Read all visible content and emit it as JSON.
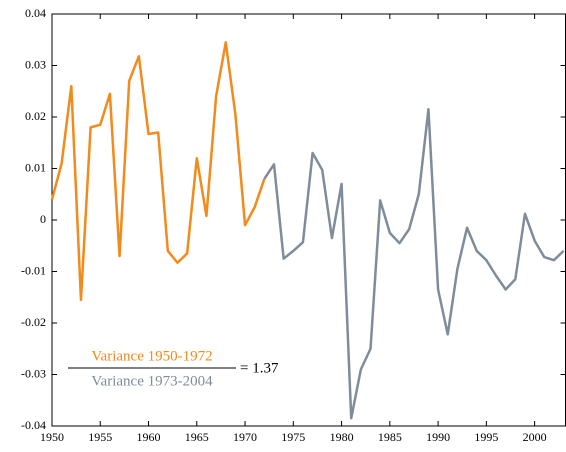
{
  "chart_data": {
    "type": "line",
    "x": [
      1950,
      1951,
      1952,
      1953,
      1954,
      1955,
      1956,
      1957,
      1958,
      1959,
      1960,
      1961,
      1962,
      1963,
      1964,
      1965,
      1966,
      1967,
      1968,
      1969,
      1970,
      1971,
      1972,
      1973,
      1974,
      1975,
      1976,
      1977,
      1978,
      1979,
      1980,
      1981,
      1982,
      1983,
      1984,
      1985,
      1986,
      1987,
      1988,
      1989,
      1990,
      1991,
      1992,
      1993,
      1994,
      1995,
      1996,
      1997,
      1998,
      1999,
      2000,
      2001,
      2002,
      2003
    ],
    "series": [
      {
        "name": "Variance 1950-1972",
        "color": "#f28a1c",
        "values": [
          0.004,
          0.011,
          0.026,
          -0.0155,
          0.018,
          0.0185,
          0.0245,
          -0.007,
          0.027,
          0.0318,
          0.0167,
          0.017,
          -0.006,
          -0.0083,
          -0.0065,
          0.012,
          0.0008,
          0.024,
          0.0345,
          0.0205,
          -0.001,
          0.0025,
          0.008,
          null,
          null,
          null,
          null,
          null,
          null,
          null,
          null,
          null,
          null,
          null,
          null,
          null,
          null,
          null,
          null,
          null,
          null,
          null,
          null,
          null,
          null,
          null,
          null,
          null,
          null,
          null,
          null,
          null,
          null,
          null
        ]
      },
      {
        "name": "Variance 1973-2004",
        "color": "#7f8c9a",
        "values": [
          null,
          null,
          null,
          null,
          null,
          null,
          null,
          null,
          null,
          null,
          null,
          null,
          null,
          null,
          null,
          null,
          null,
          null,
          null,
          null,
          null,
          null,
          0.008,
          0.0108,
          -0.0075,
          -0.006,
          -0.0043,
          0.013,
          0.0097,
          -0.0035,
          0.007,
          -0.0385,
          -0.029,
          -0.025,
          0.0038,
          -0.0025,
          -0.0045,
          -0.0018,
          0.005,
          0.0215,
          -0.0135,
          -0.0222,
          -0.0095,
          -0.0015,
          -0.006,
          -0.0078,
          -0.0108,
          -0.0135,
          -0.0115,
          0.0012,
          -0.004,
          -0.0072,
          -0.0078,
          -0.006
        ]
      }
    ],
    "annotation": {
      "result": "= 1.37"
    },
    "xlim": [
      1950,
      2003.2
    ],
    "xticks": [
      1950,
      1955,
      1960,
      1965,
      1970,
      1975,
      1980,
      1985,
      1990,
      1995,
      2000
    ],
    "ylim": [
      -0.04,
      0.04
    ],
    "yticks": [
      -0.04,
      -0.03,
      -0.02,
      -0.01,
      0,
      0.01,
      0.02,
      0.03,
      0.04
    ],
    "grid": false
  }
}
